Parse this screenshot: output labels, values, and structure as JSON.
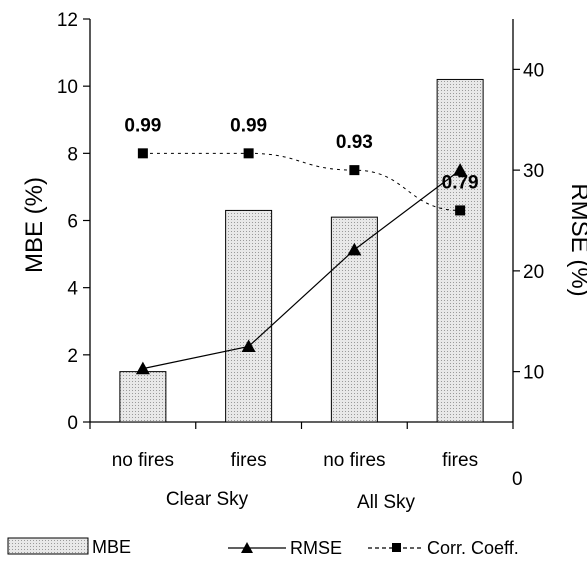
{
  "chart_data": {
    "type": "bar",
    "categories": [
      "no fires",
      "fires",
      "no fires",
      "fires"
    ],
    "groups": [
      "Clear Sky",
      "All Sky"
    ],
    "ylabel": "MBE (%)",
    "y2label": "RMSE (%)",
    "ylim": [
      0,
      12
    ],
    "yticks": [
      0,
      2,
      4,
      6,
      8,
      10,
      12
    ],
    "y2lim": [
      5,
      45
    ],
    "y2ticks": [
      10,
      20,
      30,
      40
    ],
    "y2_extra_label": "0",
    "series": [
      {
        "name": "MBE",
        "type": "bar",
        "axis": "left",
        "values": [
          1.5,
          6.3,
          6.1,
          10.2
        ]
      },
      {
        "name": "RMSE",
        "type": "line",
        "axis": "right",
        "values": [
          10.3,
          12.5,
          22.1,
          30.0
        ]
      },
      {
        "name": "Corr. Coeff.",
        "type": "line-dashed",
        "axis": "left",
        "values": [
          8.0,
          8.0,
          7.5,
          6.3
        ],
        "labels": [
          "0.99",
          "0.99",
          "0.93",
          "0.79"
        ]
      }
    ],
    "legend": [
      "MBE",
      "RMSE",
      "Corr. Coeff."
    ],
    "legend_placement": "bottom",
    "colors": {
      "bar_fill": "#e6e6e6",
      "line": "#000000"
    }
  }
}
